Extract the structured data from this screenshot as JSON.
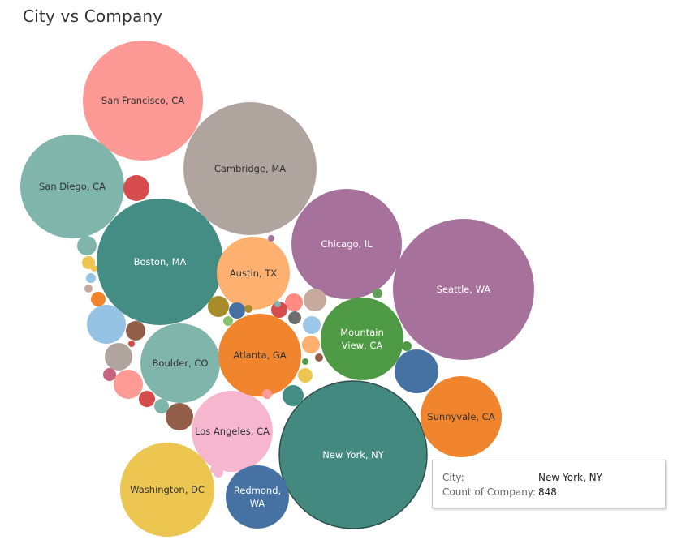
{
  "title": "City vs Company",
  "chart_data": {
    "type": "bubble",
    "title": "City vs Company",
    "measure": "Count of Company",
    "dimension": "City",
    "bubbles": [
      {
        "label": "New York, NY",
        "label_lines": [
          "New York, NY"
        ],
        "value": 848,
        "color": "#44897f",
        "selected": true
      },
      {
        "label": "Seattle, WA",
        "label_lines": [
          "Seattle, WA"
        ],
        "value": 780,
        "color": "#a6719a"
      },
      {
        "label": "Cambridge, MA",
        "label_lines": [
          "Cambridge, MA"
        ],
        "value": 705,
        "color": "#b0a49f"
      },
      {
        "label": "Boston, MA",
        "label_lines": [
          "Boston, MA"
        ],
        "value": 640,
        "color": "#438d85"
      },
      {
        "label": "Chicago, IL",
        "label_lines": [
          "Chicago, IL"
        ],
        "value": 470,
        "color": "#a6719a"
      },
      {
        "label": "San Francisco, CA",
        "label_lines": [
          "San Francisco, CA"
        ],
        "value": 570,
        "color": "#fd9995"
      },
      {
        "label": "San Diego, CA",
        "label_lines": [
          "San Diego, CA"
        ],
        "value": 420,
        "color": "#80b5ab"
      },
      {
        "label": "Boulder, CO",
        "label_lines": [
          "Boulder, CO"
        ],
        "value": 250,
        "color": "#80b5ab"
      },
      {
        "label": "Los Angeles, CA",
        "label_lines": [
          "Los Angeles, CA"
        ],
        "value": 255,
        "color": "#f6b6ce"
      },
      {
        "label": "Washington, DC",
        "label_lines": [
          "Washington, DC"
        ],
        "value": 340,
        "color": "#ecc651"
      },
      {
        "label": "Atlanta, GA",
        "label_lines": [
          "Atlanta, GA"
        ],
        "value": 265,
        "color": "#f0852d"
      },
      {
        "label": "Mountain View, CA",
        "label_lines": [
          "Mountain",
          "View, CA"
        ],
        "value": 280,
        "color": "#4f9a45"
      },
      {
        "label": "Austin, TX",
        "label_lines": [
          "Austin, TX"
        ],
        "value": 215,
        "color": "#fdb06f"
      },
      {
        "label": "Sunnyvale, CA",
        "label_lines": [
          "Sunnyvale, CA"
        ],
        "value": 255,
        "color": "#f0852d"
      },
      {
        "label": "Redmond, WA",
        "label_lines": [
          "Redmond,",
          "WA"
        ],
        "value": 160,
        "color": "#4672a3"
      },
      {
        "label": "",
        "value": 60,
        "color": "#4672a3"
      },
      {
        "label": "",
        "value": 50,
        "color": "#96c3e4"
      },
      {
        "label": "",
        "value": 28,
        "color": "#d64c4c"
      },
      {
        "label": "",
        "value": 25,
        "color": "#ff9a95"
      },
      {
        "label": "",
        "value": 23,
        "color": "#b0a49f"
      },
      {
        "label": "",
        "value": 22,
        "color": "#935f48"
      },
      {
        "label": "",
        "value": 16,
        "color": "#a98d2a"
      },
      {
        "label": "",
        "value": 16,
        "color": "#c8a99d"
      },
      {
        "label": "",
        "value": 14,
        "color": "#80b5ab"
      },
      {
        "label": "",
        "value": 13,
        "color": "#438d85"
      },
      {
        "label": "",
        "value": 13,
        "color": "#ff8b83"
      },
      {
        "label": "",
        "value": 13,
        "color": "#935f48"
      },
      {
        "label": "",
        "value": 12,
        "color": "#9cc7e9"
      },
      {
        "label": "",
        "value": 11,
        "color": "#fdb06f"
      },
      {
        "label": "",
        "value": 10,
        "color": "#d64c4c"
      },
      {
        "label": "",
        "value": 10,
        "color": "#d64c4c"
      },
      {
        "label": "",
        "value": 9,
        "color": "#4672a3"
      },
      {
        "label": "",
        "value": 9,
        "color": "#80b5ab"
      },
      {
        "label": "",
        "value": 8,
        "color": "#ecc651"
      },
      {
        "label": "",
        "value": 8,
        "color": "#c8637f"
      },
      {
        "label": "",
        "value": 8,
        "color": "#f0852d"
      },
      {
        "label": "",
        "value": 8,
        "color": "#ecc651"
      },
      {
        "label": "",
        "value": 7,
        "color": "#6e6e6e"
      },
      {
        "label": "",
        "value": 6,
        "color": "#ff9a95"
      },
      {
        "label": "",
        "value": 6,
        "color": "#62a05c"
      },
      {
        "label": "",
        "value": 5,
        "color": "#f6b6ce"
      },
      {
        "label": "",
        "value": 5,
        "color": "#8ac170"
      },
      {
        "label": "",
        "value": 5,
        "color": "#96c3e4"
      },
      {
        "label": "",
        "value": 4,
        "color": "#4f9a45"
      },
      {
        "label": "",
        "value": 4,
        "color": "#a98d2a"
      },
      {
        "label": "",
        "value": 4,
        "color": "#c8a99d"
      },
      {
        "label": "",
        "value": 3,
        "color": "#f6b6ce"
      },
      {
        "label": "",
        "value": 3,
        "color": "#935f48"
      },
      {
        "label": "",
        "value": 3,
        "color": "#4f9a45"
      },
      {
        "label": "",
        "value": 3,
        "color": "#f0852d"
      },
      {
        "label": "",
        "value": 2,
        "color": "#a6719a"
      },
      {
        "label": "",
        "value": 2,
        "color": "#ecc651"
      },
      {
        "label": "",
        "value": 2,
        "color": "#d64c4c"
      },
      {
        "label": "",
        "value": 2,
        "color": "#80b5ab"
      },
      {
        "label": "",
        "value": 2,
        "color": "#f6b6ce"
      }
    ]
  },
  "tooltip": {
    "city_key": "City:",
    "city_value": "New York, NY",
    "count_key": "Count of Company:",
    "count_value": "848"
  }
}
